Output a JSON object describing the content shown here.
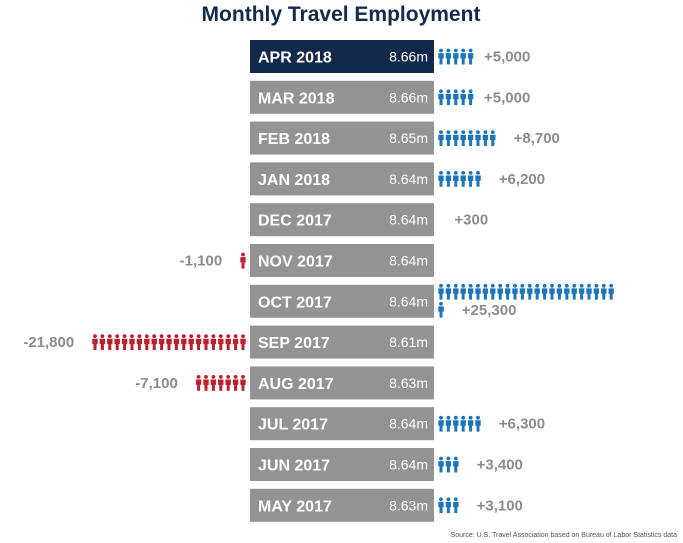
{
  "chart_data": {
    "type": "bar",
    "title": "Monthly Travel Employment",
    "source": "Source: U.S. Travel Association based on Bureau of Labor Statistics data",
    "categories": [
      "APR 2018",
      "MAR 2018",
      "FEB 2018",
      "JAN 2018",
      "DEC 2017",
      "NOV 2017",
      "OCT 2017",
      "SEP 2017",
      "AUG 2017",
      "JUL 2017",
      "JUN 2017",
      "MAY 2017"
    ],
    "employment_labels": [
      "8.66m",
      "8.66m",
      "8.65m",
      "8.64m",
      "8.64m",
      "8.64m",
      "8.64m",
      "8.61m",
      "8.63m",
      "8.64m",
      "8.64m",
      "8.63m"
    ],
    "change_values": [
      5000,
      5000,
      8700,
      6200,
      300,
      -1100,
      25300,
      -21800,
      -7100,
      6300,
      3400,
      3100
    ],
    "change_labels": [
      "+5,000",
      "+5,000",
      "+8,700",
      "+6,200",
      "+300",
      "-1,100",
      "+25,300",
      "-21,800",
      "-7,100",
      "+6,300",
      "+3,400",
      "+3,100"
    ],
    "icon_unit": "1 person icon = 1,000 jobs",
    "icon_name": "person-icon"
  },
  "colors": {
    "title": "#13294b",
    "highlight_bar": "#13294b",
    "bar": "#939393",
    "positive": "#1b75bb",
    "negative": "#be1e2d",
    "change_text": "#8c8c8c"
  }
}
